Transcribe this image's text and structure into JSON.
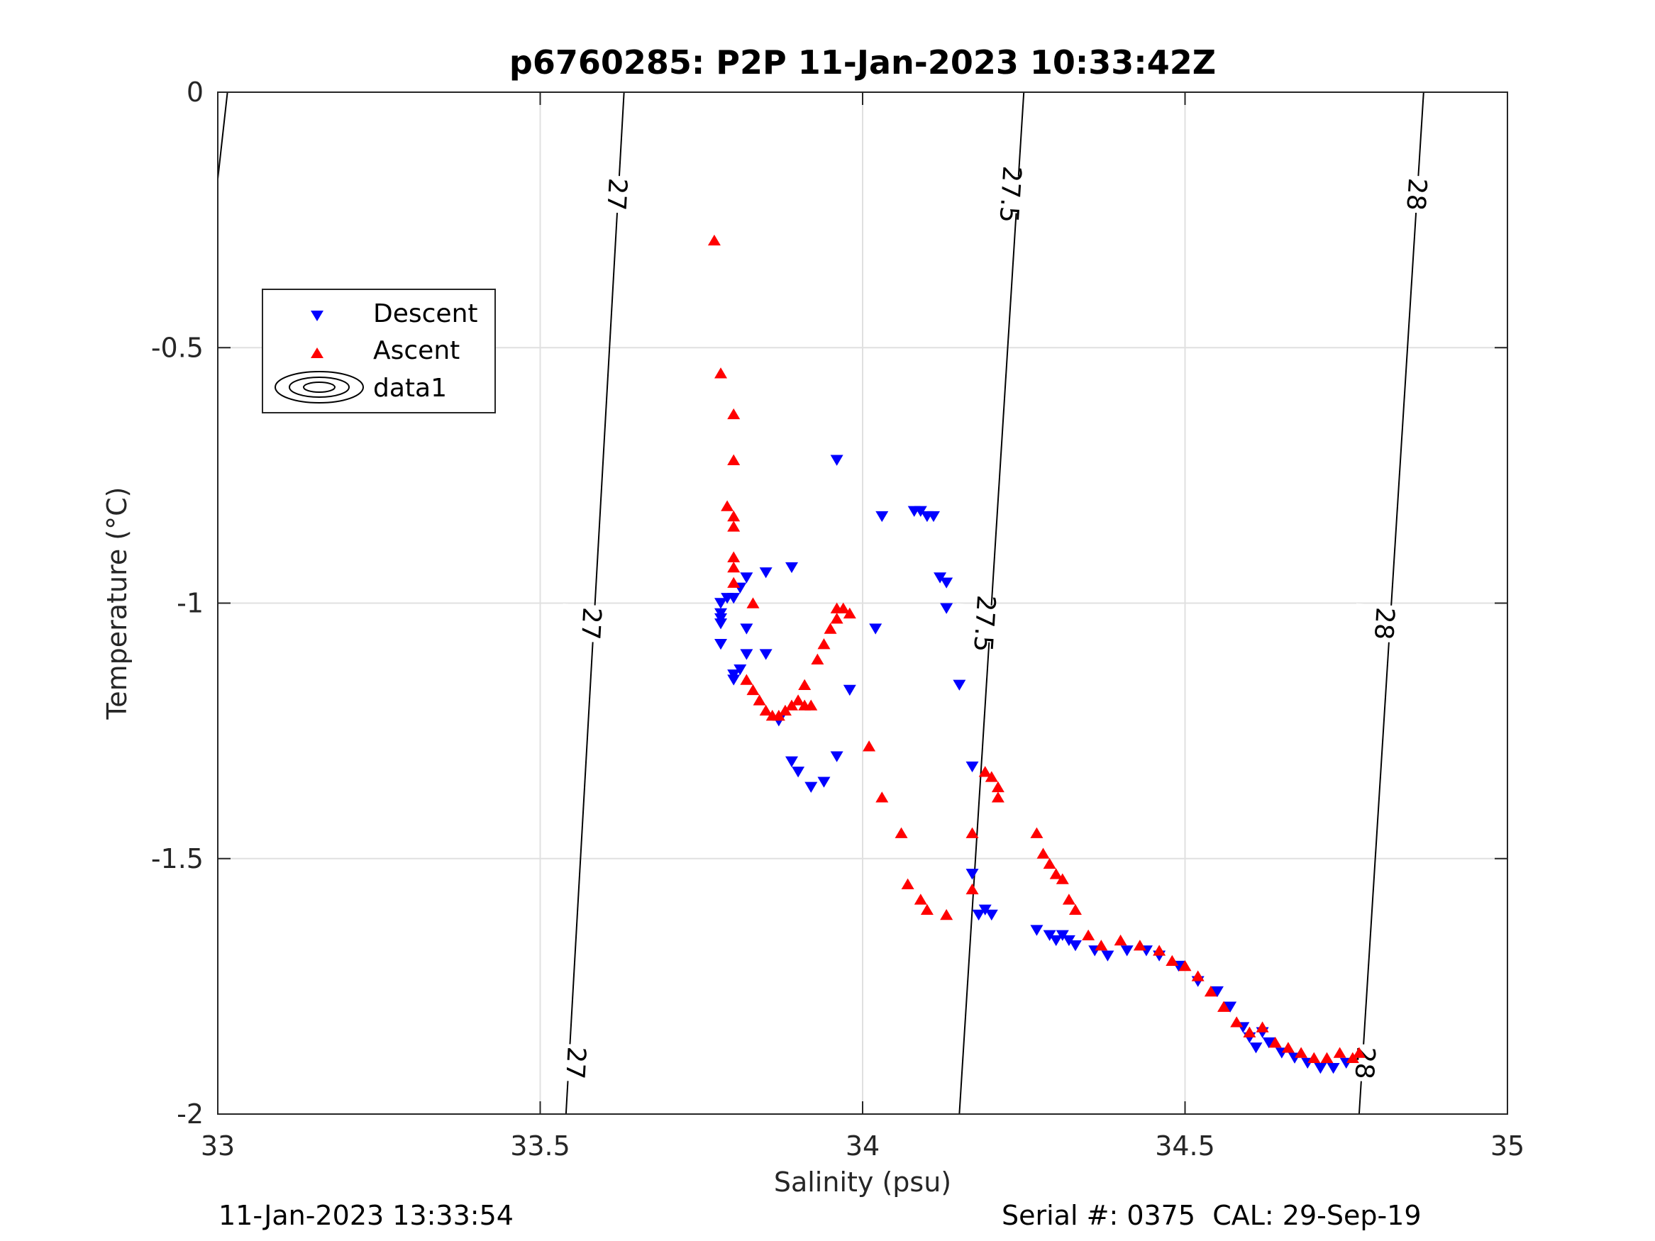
{
  "chart_data": {
    "type": "scatter",
    "title": "p6760285: P2P 11-Jan-2023 10:33:42Z",
    "xlabel": "Salinity (psu)",
    "ylabel": "Temperature (°C)",
    "xlim": [
      33,
      35
    ],
    "ylim": [
      -2,
      0
    ],
    "xticks": [
      33,
      33.5,
      34,
      34.5,
      35
    ],
    "xtick_labels": [
      "33",
      "33.5",
      "34",
      "34.5",
      "35"
    ],
    "yticks": [
      0,
      -0.5,
      -1,
      -1.5,
      -2
    ],
    "ytick_labels": [
      "0",
      "-0.5",
      "-1",
      "-1.5",
      "-2"
    ],
    "grid": true,
    "legend_placement": "upper-left",
    "legend": [
      "Descent",
      "Ascent",
      "data1"
    ],
    "colors": {
      "descent": "#0000ff",
      "ascent": "#ff0000",
      "contour": "#000000",
      "grid": "#e0e0e0"
    },
    "contours": [
      {
        "level_label": "27",
        "points": [
          [
            33.54,
            -2
          ],
          [
            33.63,
            0
          ]
        ],
        "labels_at": [
          [
            33.556,
            -1.9
          ],
          [
            33.58,
            -1.04
          ],
          [
            33.62,
            -0.2
          ]
        ]
      },
      {
        "level_label": "27.5",
        "points": [
          [
            34.15,
            -2
          ],
          [
            34.25,
            0
          ]
        ],
        "labels_at": [
          [
            34.19,
            -1.04
          ],
          [
            34.23,
            -0.2
          ]
        ]
      },
      {
        "level_label": "28",
        "points": [
          [
            34.77,
            -2
          ],
          [
            34.87,
            0
          ]
        ],
        "labels_at": [
          [
            34.78,
            -1.9
          ],
          [
            34.81,
            -1.04
          ],
          [
            34.86,
            -0.2
          ]
        ]
      },
      {
        "level_label": "",
        "points": [
          [
            33.0,
            -0.17
          ],
          [
            33.015,
            0
          ]
        ],
        "labels_at": []
      }
    ],
    "series": [
      {
        "name": "Descent",
        "marker": "triangle-down",
        "points": [
          [
            33.96,
            -0.72
          ],
          [
            34.03,
            -0.83
          ],
          [
            34.08,
            -0.82
          ],
          [
            34.09,
            -0.82
          ],
          [
            34.1,
            -0.83
          ],
          [
            34.11,
            -0.83
          ],
          [
            34.12,
            -0.95
          ],
          [
            34.13,
            -0.96
          ],
          [
            34.13,
            -1.01
          ],
          [
            34.15,
            -1.16
          ],
          [
            34.17,
            -1.32
          ],
          [
            34.17,
            -1.53
          ],
          [
            34.18,
            -1.61
          ],
          [
            34.19,
            -1.6
          ],
          [
            34.2,
            -1.61
          ],
          [
            34.02,
            -1.05
          ],
          [
            33.98,
            -1.17
          ],
          [
            33.96,
            -1.3
          ],
          [
            33.89,
            -0.93
          ],
          [
            33.85,
            -0.94
          ],
          [
            33.82,
            -0.95
          ],
          [
            33.81,
            -0.97
          ],
          [
            33.8,
            -0.99
          ],
          [
            33.79,
            -0.99
          ],
          [
            33.78,
            -1.0
          ],
          [
            33.78,
            -1.02
          ],
          [
            33.78,
            -1.03
          ],
          [
            33.78,
            -1.04
          ],
          [
            33.78,
            -1.08
          ],
          [
            33.8,
            -1.14
          ],
          [
            33.8,
            -1.15
          ],
          [
            33.81,
            -1.13
          ],
          [
            33.82,
            -1.1
          ],
          [
            33.82,
            -1.05
          ],
          [
            33.85,
            -1.1
          ],
          [
            33.87,
            -1.23
          ],
          [
            33.89,
            -1.31
          ],
          [
            33.9,
            -1.33
          ],
          [
            33.92,
            -1.36
          ],
          [
            33.94,
            -1.35
          ],
          [
            34.27,
            -1.64
          ],
          [
            34.29,
            -1.65
          ],
          [
            34.3,
            -1.66
          ],
          [
            34.31,
            -1.65
          ],
          [
            34.32,
            -1.66
          ],
          [
            34.33,
            -1.67
          ],
          [
            34.36,
            -1.68
          ],
          [
            34.38,
            -1.69
          ],
          [
            34.41,
            -1.68
          ],
          [
            34.44,
            -1.68
          ],
          [
            34.46,
            -1.69
          ],
          [
            34.49,
            -1.71
          ],
          [
            34.52,
            -1.74
          ],
          [
            34.55,
            -1.76
          ],
          [
            34.57,
            -1.79
          ],
          [
            34.59,
            -1.83
          ],
          [
            34.6,
            -1.85
          ],
          [
            34.61,
            -1.87
          ],
          [
            34.62,
            -1.84
          ],
          [
            34.63,
            -1.86
          ],
          [
            34.65,
            -1.88
          ],
          [
            34.67,
            -1.89
          ],
          [
            34.69,
            -1.9
          ],
          [
            34.71,
            -1.91
          ],
          [
            34.73,
            -1.91
          ],
          [
            34.75,
            -1.9
          ]
        ]
      },
      {
        "name": "Ascent",
        "marker": "triangle-up",
        "points": [
          [
            33.77,
            -0.29
          ],
          [
            33.78,
            -0.55
          ],
          [
            33.8,
            -0.63
          ],
          [
            33.8,
            -0.72
          ],
          [
            33.79,
            -0.81
          ],
          [
            33.8,
            -0.83
          ],
          [
            33.8,
            -0.85
          ],
          [
            33.8,
            -0.91
          ],
          [
            33.8,
            -0.93
          ],
          [
            33.8,
            -0.96
          ],
          [
            33.83,
            -1.0
          ],
          [
            33.82,
            -1.15
          ],
          [
            33.83,
            -1.17
          ],
          [
            33.84,
            -1.19
          ],
          [
            33.85,
            -1.21
          ],
          [
            33.86,
            -1.22
          ],
          [
            33.87,
            -1.22
          ],
          [
            33.88,
            -1.21
          ],
          [
            33.89,
            -1.2
          ],
          [
            33.9,
            -1.19
          ],
          [
            33.91,
            -1.2
          ],
          [
            33.92,
            -1.2
          ],
          [
            33.91,
            -1.16
          ],
          [
            33.93,
            -1.11
          ],
          [
            33.94,
            -1.08
          ],
          [
            33.95,
            -1.05
          ],
          [
            33.96,
            -1.03
          ],
          [
            33.96,
            -1.01
          ],
          [
            33.97,
            -1.01
          ],
          [
            33.98,
            -1.02
          ],
          [
            34.01,
            -1.28
          ],
          [
            34.03,
            -1.38
          ],
          [
            34.06,
            -1.45
          ],
          [
            34.07,
            -1.55
          ],
          [
            34.09,
            -1.58
          ],
          [
            34.1,
            -1.6
          ],
          [
            34.13,
            -1.61
          ],
          [
            34.17,
            -1.56
          ],
          [
            34.17,
            -1.45
          ],
          [
            34.19,
            -1.33
          ],
          [
            34.2,
            -1.34
          ],
          [
            34.21,
            -1.36
          ],
          [
            34.21,
            -1.38
          ],
          [
            34.27,
            -1.45
          ],
          [
            34.28,
            -1.49
          ],
          [
            34.29,
            -1.51
          ],
          [
            34.3,
            -1.53
          ],
          [
            34.31,
            -1.54
          ],
          [
            34.32,
            -1.58
          ],
          [
            34.33,
            -1.6
          ],
          [
            34.35,
            -1.65
          ],
          [
            34.37,
            -1.67
          ],
          [
            34.4,
            -1.66
          ],
          [
            34.43,
            -1.67
          ],
          [
            34.46,
            -1.68
          ],
          [
            34.48,
            -1.7
          ],
          [
            34.5,
            -1.71
          ],
          [
            34.52,
            -1.73
          ],
          [
            34.54,
            -1.76
          ],
          [
            34.56,
            -1.79
          ],
          [
            34.58,
            -1.82
          ],
          [
            34.6,
            -1.84
          ],
          [
            34.62,
            -1.83
          ],
          [
            34.64,
            -1.86
          ],
          [
            34.66,
            -1.87
          ],
          [
            34.68,
            -1.88
          ],
          [
            34.7,
            -1.89
          ],
          [
            34.72,
            -1.89
          ],
          [
            34.74,
            -1.88
          ],
          [
            34.76,
            -1.89
          ],
          [
            34.77,
            -1.88
          ]
        ]
      }
    ]
  },
  "footer": {
    "timestamp": "11-Jan-2023 13:33:54",
    "serial_cal": "Serial #: 0375  CAL: 29-Sep-19"
  }
}
